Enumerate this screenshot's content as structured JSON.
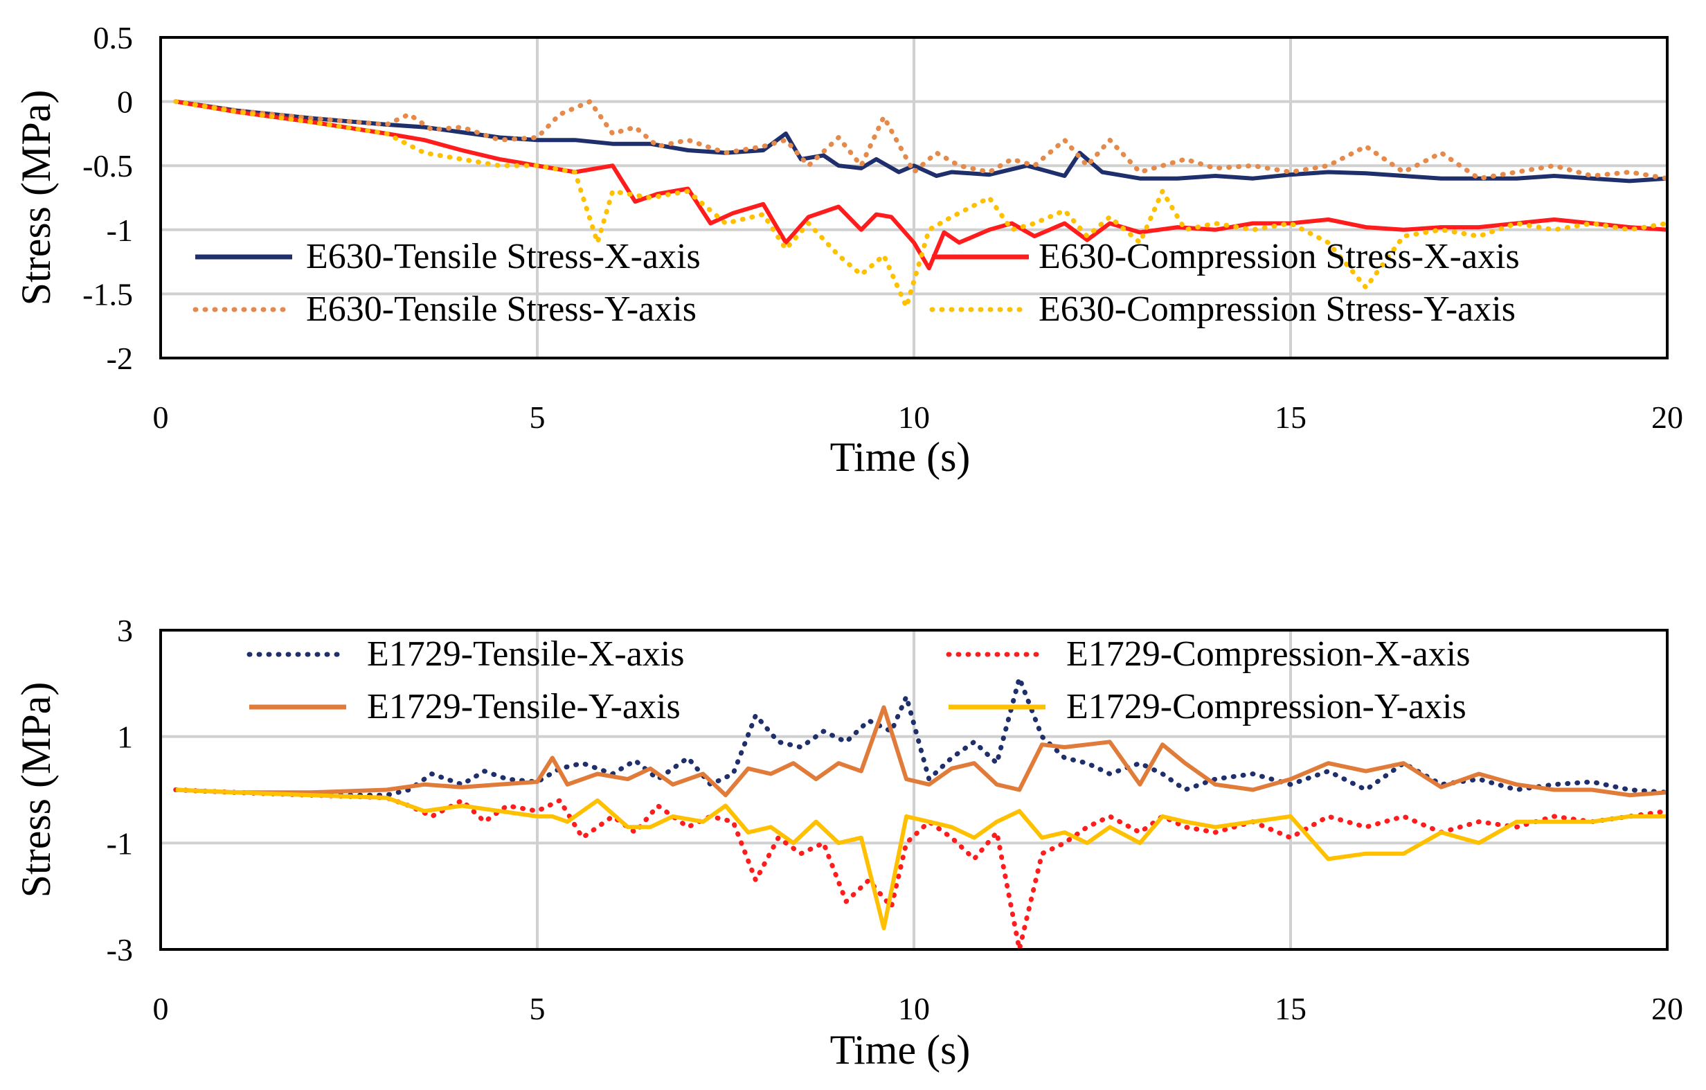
{
  "chart_data": [
    {
      "type": "line",
      "title": "",
      "xlabel": "Time (s)",
      "ylabel": "Stress (MPa)",
      "xlim": [
        0,
        20
      ],
      "ylim": [
        -2,
        0.5
      ],
      "xticks": [
        "0",
        "5",
        "10",
        "15",
        "20"
      ],
      "yticks": [
        "0.5",
        "0",
        "-0.5",
        "-1",
        "-1.5",
        "-2"
      ],
      "grid": true,
      "legend_placement": "bottom",
      "series": [
        {
          "name": "E630-Tensile Stress-X-axis",
          "color": "#1f2f6b",
          "style": "solid",
          "x": [
            0.2,
            1,
            2,
            3,
            3.5,
            4,
            4.5,
            5,
            5.5,
            6,
            6.5,
            7,
            7.5,
            8,
            8.3,
            8.5,
            8.8,
            9,
            9.3,
            9.5,
            9.8,
            10,
            10.3,
            10.5,
            11,
            11.5,
            12,
            12.2,
            12.5,
            13,
            13.5,
            14,
            14.5,
            15,
            15.5,
            16,
            16.5,
            17,
            17.5,
            18,
            18.5,
            19,
            19.5,
            20
          ],
          "y": [
            0,
            -0.07,
            -0.13,
            -0.18,
            -0.2,
            -0.24,
            -0.28,
            -0.3,
            -0.3,
            -0.33,
            -0.33,
            -0.38,
            -0.4,
            -0.38,
            -0.25,
            -0.45,
            -0.42,
            -0.5,
            -0.52,
            -0.45,
            -0.55,
            -0.5,
            -0.58,
            -0.55,
            -0.57,
            -0.5,
            -0.58,
            -0.4,
            -0.55,
            -0.6,
            -0.6,
            -0.58,
            -0.6,
            -0.57,
            -0.55,
            -0.56,
            -0.58,
            -0.6,
            -0.6,
            -0.6,
            -0.58,
            -0.6,
            -0.62,
            -0.6
          ]
        },
        {
          "name": "E630-Compression Stress-X-axis",
          "color": "#ff1c1c",
          "style": "solid",
          "x": [
            0.2,
            1,
            2,
            3,
            3.5,
            4,
            4.5,
            5,
            5.5,
            6,
            6.3,
            6.6,
            7,
            7.3,
            7.6,
            8,
            8.3,
            8.6,
            9,
            9.3,
            9.5,
            9.7,
            10,
            10.2,
            10.4,
            10.6,
            11,
            11.3,
            11.6,
            12,
            12.3,
            12.6,
            13,
            13.5,
            14,
            14.5,
            15,
            15.5,
            16,
            16.5,
            17,
            17.5,
            18,
            18.5,
            19,
            19.5,
            20
          ],
          "y": [
            0,
            -0.08,
            -0.16,
            -0.25,
            -0.3,
            -0.38,
            -0.45,
            -0.5,
            -0.55,
            -0.5,
            -0.78,
            -0.72,
            -0.68,
            -0.95,
            -0.87,
            -0.8,
            -1.1,
            -0.9,
            -0.82,
            -1.0,
            -0.88,
            -0.9,
            -1.1,
            -1.3,
            -1.02,
            -1.1,
            -1.0,
            -0.95,
            -1.05,
            -0.95,
            -1.08,
            -0.95,
            -1.02,
            -0.98,
            -1.0,
            -0.95,
            -0.95,
            -0.92,
            -0.98,
            -1.0,
            -0.98,
            -0.98,
            -0.95,
            -0.92,
            -0.95,
            -0.98,
            -1.0
          ]
        },
        {
          "name": "E630-Tensile Stress-Y-axis",
          "color": "#e58a4a",
          "style": "dotted",
          "x": [
            0.2,
            1,
            2,
            3,
            3.3,
            3.6,
            4,
            4.5,
            5,
            5.3,
            5.7,
            6,
            6.3,
            6.6,
            7,
            7.5,
            8,
            8.3,
            8.6,
            9,
            9.3,
            9.6,
            10,
            10.3,
            10.6,
            11,
            11.3,
            11.6,
            12,
            12.3,
            12.6,
            13,
            13.3,
            13.6,
            14,
            14.5,
            15,
            15.5,
            16,
            16.5,
            17,
            17.5,
            18,
            18.5,
            19,
            19.5,
            20
          ],
          "y": [
            0,
            -0.07,
            -0.13,
            -0.18,
            -0.1,
            -0.22,
            -0.2,
            -0.3,
            -0.28,
            -0.1,
            0.0,
            -0.25,
            -0.2,
            -0.35,
            -0.3,
            -0.4,
            -0.35,
            -0.3,
            -0.5,
            -0.28,
            -0.5,
            -0.12,
            -0.55,
            -0.4,
            -0.5,
            -0.55,
            -0.45,
            -0.5,
            -0.3,
            -0.5,
            -0.3,
            -0.55,
            -0.5,
            -0.45,
            -0.52,
            -0.5,
            -0.55,
            -0.5,
            -0.35,
            -0.55,
            -0.4,
            -0.6,
            -0.55,
            -0.5,
            -0.58,
            -0.55,
            -0.6
          ]
        },
        {
          "name": "E630-Compression Stress-Y-axis",
          "color": "#ffc000",
          "style": "dotted",
          "x": [
            0.2,
            1,
            2,
            3,
            3.5,
            4,
            4.5,
            5,
            5.5,
            5.8,
            6,
            6.5,
            7,
            7.5,
            8,
            8.3,
            8.6,
            9,
            9.3,
            9.6,
            9.9,
            10.2,
            10.5,
            11,
            11.3,
            11.6,
            12,
            12.3,
            12.6,
            13,
            13.3,
            13.6,
            14,
            14.5,
            15,
            15.5,
            16,
            16.5,
            17,
            17.5,
            18,
            18.5,
            19,
            19.5,
            20
          ],
          "y": [
            0,
            -0.08,
            -0.16,
            -0.25,
            -0.4,
            -0.45,
            -0.5,
            -0.5,
            -0.55,
            -1.1,
            -0.7,
            -0.75,
            -0.7,
            -0.95,
            -0.88,
            -1.15,
            -0.95,
            -1.2,
            -1.35,
            -1.2,
            -1.6,
            -1.0,
            -0.9,
            -0.75,
            -1.0,
            -0.95,
            -0.85,
            -1.05,
            -0.9,
            -1.1,
            -0.7,
            -1.0,
            -0.95,
            -1.0,
            -0.95,
            -1.1,
            -1.45,
            -1.05,
            -1.0,
            -1.05,
            -0.95,
            -1.0,
            -0.95,
            -1.0,
            -0.95
          ]
        }
      ]
    },
    {
      "type": "line",
      "title": "",
      "xlabel": "Time (s)",
      "ylabel": "Stress (MPa)",
      "xlim": [
        0,
        20
      ],
      "ylim": [
        -3,
        3
      ],
      "xticks": [
        "0",
        "5",
        "10",
        "15",
        "20"
      ],
      "yticks": [
        "3",
        "1",
        "-1",
        "-3"
      ],
      "grid": true,
      "legend_placement": "top",
      "series": [
        {
          "name": "E1729-Tensile-X-axis",
          "color": "#1f2f6b",
          "style": "dotted",
          "x": [
            0.2,
            1,
            2,
            3,
            3.3,
            3.6,
            4,
            4.3,
            4.6,
            5,
            5.3,
            5.6,
            6,
            6.3,
            6.6,
            7,
            7.3,
            7.6,
            7.9,
            8.2,
            8.5,
            8.8,
            9.1,
            9.4,
            9.7,
            9.9,
            10.2,
            10.5,
            10.8,
            11.1,
            11.4,
            11.7,
            12,
            12.3,
            12.6,
            13,
            13.3,
            13.6,
            14,
            14.5,
            15,
            15.5,
            16,
            16.5,
            17,
            17.5,
            18,
            18.5,
            19,
            19.5,
            20
          ],
          "y": [
            0,
            -0.05,
            -0.1,
            -0.1,
            0.0,
            0.3,
            0.1,
            0.35,
            0.2,
            0.15,
            0.4,
            0.5,
            0.3,
            0.55,
            0.2,
            0.6,
            0.1,
            0.3,
            1.4,
            0.9,
            0.8,
            1.1,
            0.9,
            1.3,
            1.1,
            1.75,
            0.2,
            0.6,
            0.9,
            0.5,
            2.1,
            1.0,
            0.6,
            0.5,
            0.3,
            0.5,
            0.3,
            0.0,
            0.2,
            0.3,
            0.1,
            0.35,
            0.0,
            0.5,
            0.1,
            0.2,
            0.0,
            0.1,
            0.15,
            0.0,
            -0.05
          ]
        },
        {
          "name": "E1729-Compression-X-axis",
          "color": "#ff1c1c",
          "style": "dotted",
          "x": [
            0.2,
            1,
            2,
            3,
            3.3,
            3.6,
            4,
            4.3,
            4.6,
            5,
            5.3,
            5.6,
            6,
            6.3,
            6.6,
            7,
            7.3,
            7.6,
            7.9,
            8.2,
            8.5,
            8.8,
            9.1,
            9.4,
            9.7,
            9.9,
            10.2,
            10.5,
            10.8,
            11.1,
            11.4,
            11.7,
            12,
            12.3,
            12.6,
            13,
            13.3,
            13.6,
            14,
            14.5,
            15,
            15.5,
            16,
            16.5,
            17,
            17.5,
            18,
            18.5,
            19,
            19.5,
            20
          ],
          "y": [
            0,
            -0.05,
            -0.1,
            -0.15,
            -0.3,
            -0.5,
            -0.2,
            -0.6,
            -0.3,
            -0.4,
            -0.2,
            -0.9,
            -0.5,
            -0.8,
            -0.3,
            -0.7,
            -0.5,
            -0.6,
            -1.7,
            -0.9,
            -1.2,
            -1.0,
            -2.1,
            -1.7,
            -2.2,
            -1.0,
            -0.6,
            -0.9,
            -1.3,
            -0.8,
            -3.0,
            -1.2,
            -1.0,
            -0.7,
            -0.5,
            -0.8,
            -0.5,
            -0.7,
            -0.8,
            -0.6,
            -0.9,
            -0.5,
            -0.7,
            -0.5,
            -0.8,
            -0.6,
            -0.7,
            -0.5,
            -0.6,
            -0.5,
            -0.4
          ]
        },
        {
          "name": "E1729-Tensile-Y-axis",
          "color": "#e07b39",
          "style": "solid",
          "x": [
            0.2,
            1,
            2,
            3,
            3.5,
            4,
            4.5,
            5,
            5.2,
            5.4,
            5.8,
            6.2,
            6.5,
            6.8,
            7.2,
            7.5,
            7.8,
            8.1,
            8.4,
            8.7,
            9,
            9.3,
            9.6,
            9.9,
            10.2,
            10.5,
            10.8,
            11.1,
            11.4,
            11.7,
            12,
            12.3,
            12.6,
            13,
            13.3,
            13.6,
            14,
            14.5,
            15,
            15.5,
            16,
            16.5,
            17,
            17.5,
            18,
            18.5,
            19,
            19.5,
            20
          ],
          "y": [
            0,
            -0.05,
            -0.05,
            0.0,
            0.1,
            0.05,
            0.1,
            0.15,
            0.6,
            0.1,
            0.3,
            0.2,
            0.4,
            0.1,
            0.3,
            -0.1,
            0.4,
            0.3,
            0.5,
            0.2,
            0.5,
            0.35,
            1.55,
            0.2,
            0.1,
            0.4,
            0.5,
            0.1,
            0.0,
            0.85,
            0.8,
            0.85,
            0.9,
            0.1,
            0.85,
            0.5,
            0.1,
            0.0,
            0.2,
            0.5,
            0.35,
            0.5,
            0.05,
            0.3,
            0.1,
            0.0,
            0.0,
            -0.1,
            -0.05
          ]
        },
        {
          "name": "E1729-Compression-Y-axis",
          "color": "#ffc000",
          "style": "solid",
          "x": [
            0.2,
            1,
            2,
            3,
            3.5,
            4,
            4.5,
            5,
            5.2,
            5.4,
            5.8,
            6.2,
            6.5,
            6.8,
            7.2,
            7.5,
            7.8,
            8.1,
            8.4,
            8.7,
            9,
            9.3,
            9.6,
            9.9,
            10.2,
            10.5,
            10.8,
            11.1,
            11.4,
            11.7,
            12,
            12.3,
            12.6,
            13,
            13.3,
            13.6,
            14,
            14.5,
            15,
            15.5,
            16,
            16.5,
            17,
            17.5,
            18,
            18.5,
            19,
            19.5,
            20
          ],
          "y": [
            0,
            -0.05,
            -0.1,
            -0.15,
            -0.4,
            -0.3,
            -0.4,
            -0.5,
            -0.5,
            -0.6,
            -0.2,
            -0.7,
            -0.7,
            -0.5,
            -0.6,
            -0.3,
            -0.8,
            -0.7,
            -1.0,
            -0.6,
            -1.0,
            -0.9,
            -2.6,
            -0.5,
            -0.6,
            -0.7,
            -0.9,
            -0.6,
            -0.4,
            -0.9,
            -0.8,
            -1.0,
            -0.7,
            -1.0,
            -0.5,
            -0.6,
            -0.7,
            -0.6,
            -0.5,
            -1.3,
            -1.2,
            -1.2,
            -0.8,
            -1.0,
            -0.6,
            -0.6,
            -0.6,
            -0.5,
            -0.5
          ]
        }
      ]
    }
  ]
}
